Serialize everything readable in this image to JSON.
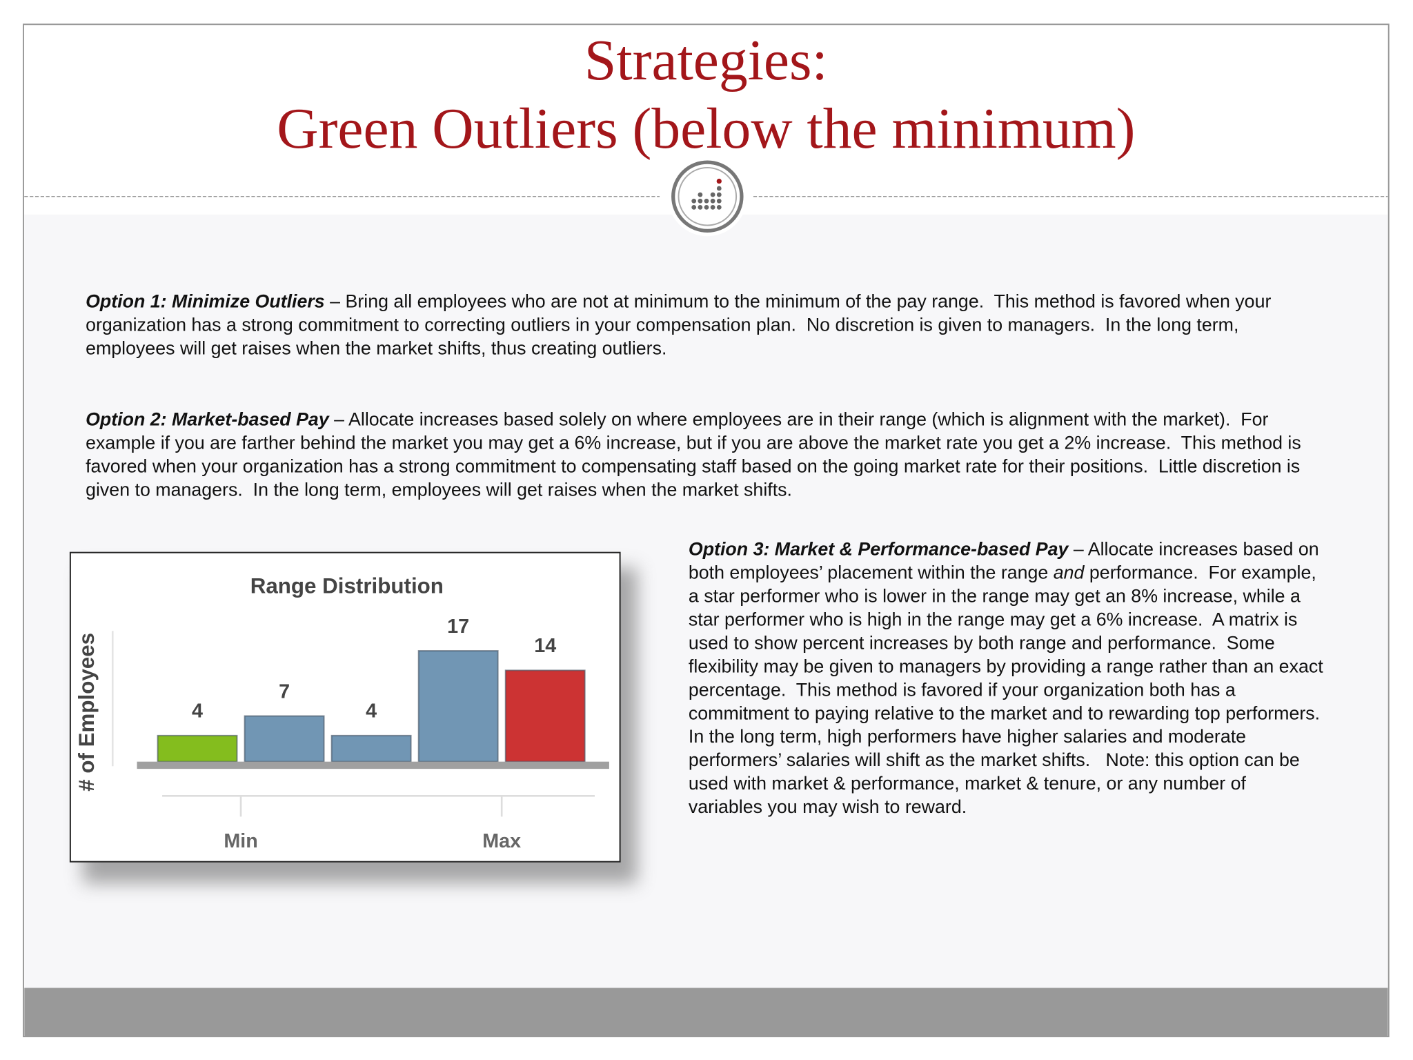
{
  "slide": {
    "title_lines": [
      "Strategies:",
      "Green Outliers (below the minimum)"
    ],
    "paragraphs": [
      {
        "runs": [
          {
            "text": "Option 1: Minimize Outliers",
            "style": "bold-italic"
          },
          {
            "text": " – Bring all employees who are not at minimum to the minimum of the pay range.  This method is favored when your organization has a strong commitment to correcting outliers in your compensation plan.  No discretion is given to managers.  In the long term, employees will get raises when the market shifts, thus creating outliers.",
            "style": "normal"
          }
        ]
      },
      {
        "runs": [
          {
            "text": "Option 2: Market-based Pay",
            "style": "bold-italic"
          },
          {
            "text": " – Allocate increases based solely on where employees are in their range (which is alignment with the market).  For example if you are farther behind the market you may get a 6% increase, but if you are above the market rate you get a 2% increase.  This method is favored when your organization has a strong commitment to compensating staff based on the going market rate for their positions.  Little discretion is given to managers.  In the long term, employees will get raises when the market shifts.",
            "style": "normal"
          }
        ]
      },
      {
        "runs": [
          {
            "text": "Option 3: Market & Performance-based Pay",
            "style": "bold-italic"
          },
          {
            "text": " – Allocate increases based on both employees’ placement within the range ",
            "style": "normal"
          },
          {
            "text": "and",
            "style": "italic"
          },
          {
            "text": " performance.  For example, a star performer who is lower in the range may get an 8% increase, while a star performer who is high in the range may get a 6% increase.  A matrix is used to show percent increases by both range and performance.  Some flexibility may be given to managers by providing a range rather than an exact percentage.  This method is favored if your organization both has a commitment to paying relative to the market and to rewarding top performers.  In the long term, high performers have higher salaries and moderate performers’ salaries will shift as the market shifts.   Note: this option can be used with market & performance, market & tenure, or any number of variables you may wish to reward.",
            "style": "normal"
          }
        ]
      }
    ]
  },
  "chart_data": {
    "type": "bar",
    "title": "Range Distribution",
    "y_label": "# of Employees",
    "categories": [
      null,
      null,
      null,
      null,
      null
    ],
    "values": [
      4,
      7,
      4,
      17,
      14
    ],
    "colors": [
      "#84bd1e",
      "#7196b4",
      "#7196b4",
      "#7196b4",
      "#cc3333"
    ],
    "axis_markers": [
      "Min",
      "Max"
    ]
  }
}
